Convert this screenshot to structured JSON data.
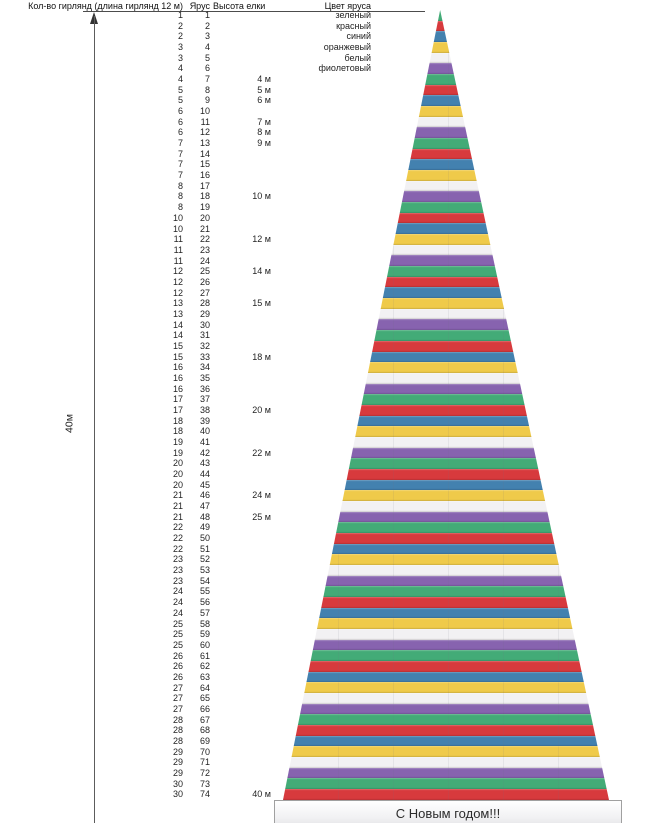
{
  "table": {
    "headers": {
      "garlands": "Кол-во гирлянд (длина гирлянд 12 м)",
      "tier": "Ярус",
      "height": "Высота елки",
      "color": "Цвет яруса"
    }
  },
  "axis": {
    "label": "40м"
  },
  "base": {
    "greeting": "С Новым годом!!!"
  },
  "chart_data": {
    "type": "table",
    "title": "",
    "columns": [
      "Кол-во гирлянд (длина гирлянд 12 м)",
      "Ярус",
      "Высота елки",
      "Цвет яруса"
    ],
    "tier_count": 74,
    "garlands_per_tier": [
      1,
      2,
      2,
      3,
      3,
      4,
      4,
      5,
      5,
      6,
      6,
      6,
      7,
      7,
      7,
      7,
      8,
      8,
      8,
      10,
      10,
      11,
      11,
      11,
      12,
      12,
      12,
      13,
      13,
      14,
      14,
      15,
      15,
      16,
      16,
      16,
      17,
      17,
      18,
      18,
      19,
      19,
      20,
      20,
      20,
      21,
      21,
      21,
      22,
      22,
      22,
      23,
      23,
      23,
      24,
      24,
      24,
      25,
      25,
      25,
      26,
      26,
      26,
      27,
      27,
      27,
      28,
      28,
      28,
      29,
      29,
      29,
      30,
      30
    ],
    "height_marks": {
      "7": "4 м",
      "8": "5 м",
      "9": "6 м",
      "11": "7 м",
      "12": "8 м",
      "13": "9 м",
      "18": "10 м",
      "22": "12 м",
      "25": "14 м",
      "28": "15 м",
      "33": "18 м",
      "38": "20 м",
      "42": "22 м",
      "46": "24 м",
      "48": "25 м",
      "74": "40 м"
    },
    "color_cycle_names": [
      "зеленый",
      "красный",
      "синий",
      "оранжевый",
      "белый",
      "фиолетовый"
    ],
    "color_hex": {
      "зеленый": "#43ab77",
      "красный": "#d73a3d",
      "синий": "#4381af",
      "оранжевый": "#efca4a",
      "белый": "#f2f1f3",
      "фиолетовый": "#8763af"
    },
    "tree_total_height_label": "40м",
    "greeting": "С Новым годом!!!"
  }
}
